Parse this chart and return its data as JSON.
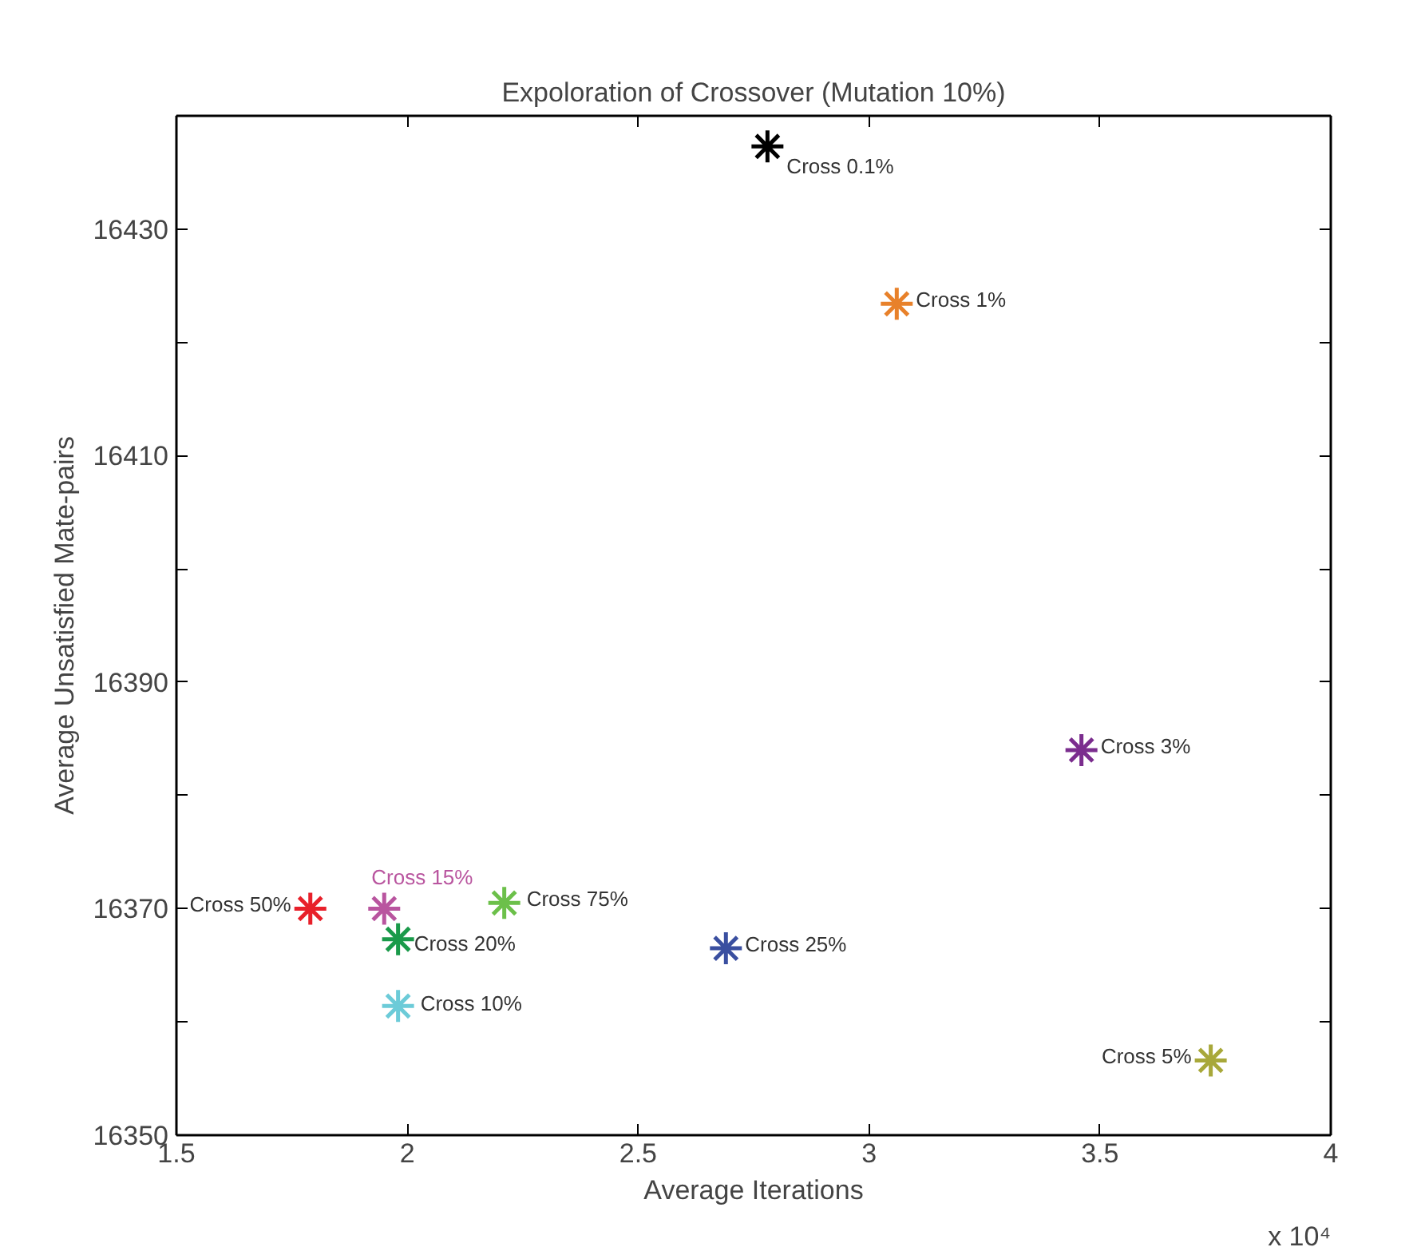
{
  "chart_data": {
    "type": "scatter",
    "title": "Expoloration of Crossover (Mutation 10%)",
    "xlabel": "Average Iterations",
    "ylabel": "Average Unsatisfied Mate-pairs",
    "annotations": [
      "x 10⁴"
    ],
    "xlim": [
      1.5,
      4
    ],
    "ylim": [
      16350,
      16440
    ],
    "xticks": [
      1.5,
      2,
      2.5,
      3,
      3.5,
      4
    ],
    "yticks": [
      16350,
      {
        "value": 16360,
        "label": null
      },
      16370,
      {
        "value": 16380,
        "label": null
      },
      16390,
      {
        "value": 16400,
        "label": null
      },
      16410,
      {
        "value": 16420,
        "label": null
      },
      16430,
      {
        "value": 16440,
        "label": null
      }
    ],
    "grid": false,
    "legend": false,
    "marker": "cross",
    "series": [
      {
        "name": "Cross 0.1%",
        "color": "#000000",
        "x": [
          2.78
        ],
        "values": [
          16437.3
        ]
      },
      {
        "name": "Cross 1%",
        "color": "#e8812a",
        "x": [
          3.06
        ],
        "values": [
          16423.4
        ]
      },
      {
        "name": "Cross 3%",
        "color": "#7b2d8e",
        "x": [
          3.46
        ],
        "values": [
          16384.0
        ]
      },
      {
        "name": "Cross 5%",
        "color": "#a8a83a",
        "x": [
          3.74
        ],
        "values": [
          16356.6
        ]
      },
      {
        "name": "Cross 25%",
        "color": "#3a4fa0",
        "x": [
          2.69
        ],
        "values": [
          16366.5
        ]
      },
      {
        "name": "Cross 75%",
        "color": "#6cc04a",
        "x": [
          2.21
        ],
        "values": [
          16370.5
        ]
      },
      {
        "name": "Cross 50%",
        "color": "#e8202a",
        "x": [
          1.79
        ],
        "values": [
          16370.0
        ]
      },
      {
        "name": "Cross 15%",
        "color": "#b9559f",
        "x": [
          1.95
        ],
        "values": [
          16370.0
        ]
      },
      {
        "name": "Cross 20%",
        "color": "#1a9a4a",
        "x": [
          1.98
        ],
        "values": [
          16367.3
        ]
      },
      {
        "name": "Cross 10%",
        "color": "#6ccbd8",
        "x": [
          1.98
        ],
        "values": [
          16361.4
        ]
      }
    ]
  }
}
